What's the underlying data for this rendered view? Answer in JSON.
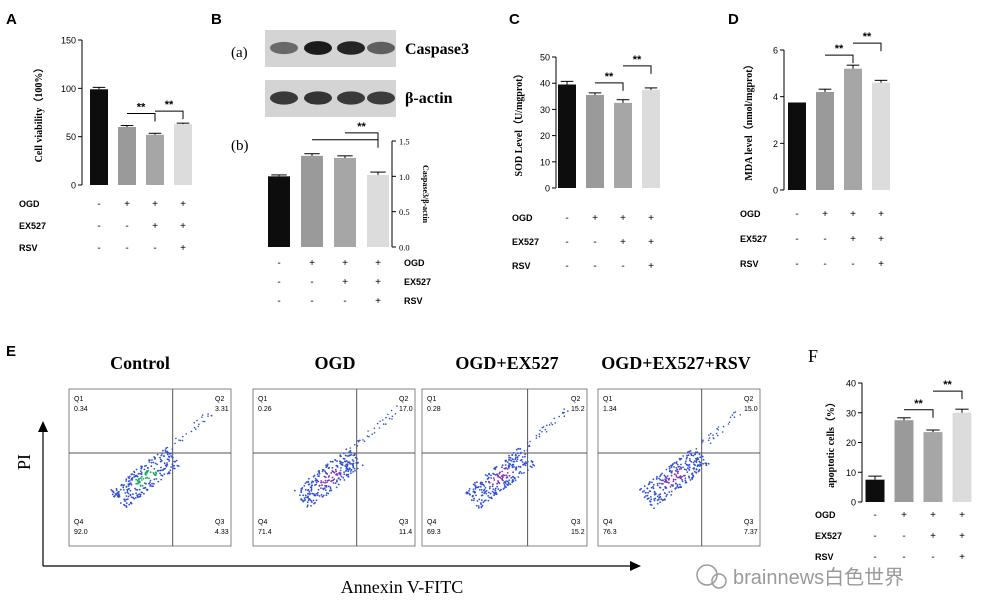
{
  "panel_letters": {
    "A": "A",
    "B": "B",
    "C": "C",
    "D": "D",
    "E": "E",
    "F": "F"
  },
  "groups": {
    "ogd": [
      "-",
      "+",
      "+",
      "+"
    ],
    "ex527": [
      "-",
      "-",
      "+",
      "+"
    ],
    "rsv": [
      "-",
      "-",
      "-",
      "+"
    ]
  },
  "row_labels": {
    "ogd": "OGD",
    "ex527": "EX527",
    "rsv": "RSV"
  },
  "sig_mark": "**",
  "bar_colors": [
    "#0d0d0d",
    "#9a9a9a",
    "#a6a6a6",
    "#dcdcdc"
  ],
  "blot": {
    "sub_a": "(a)",
    "sub_b": "(b)",
    "labels": [
      "Caspase3",
      "β-actin"
    ]
  },
  "flow": {
    "titles": [
      "Control",
      "OGD",
      "OGD+EX527",
      "OGD+EX527+RSV"
    ],
    "quadrants": [
      {
        "Q1": "0.34",
        "Q2": "3.31",
        "Q3": "4.33",
        "Q4": "92.0"
      },
      {
        "Q1": "0.26",
        "Q2": "17.0",
        "Q3": "11.4",
        "Q4": "71.4"
      },
      {
        "Q1": "0.28",
        "Q2": "15.2",
        "Q3": "15.2",
        "Q4": "69.3"
      },
      {
        "Q1": "1.34",
        "Q2": "15.0",
        "Q3": "7.37",
        "Q4": "76.3"
      }
    ],
    "q_names": [
      "Q1",
      "Q2",
      "Q3",
      "Q4"
    ],
    "y_axis_label": "PI",
    "x_axis_label": "Annexin V-FITC"
  },
  "watermark": "brainnews白色世界",
  "chart_data": [
    {
      "panel": "A",
      "type": "bar",
      "ylabel": "Cell viability（100%）",
      "ylim": [
        0,
        150
      ],
      "yticks": [
        "0",
        "50",
        "100",
        "150"
      ],
      "values": [
        99,
        60,
        52,
        63
      ],
      "errors": [
        2,
        1.5,
        1.5,
        1
      ],
      "sig": [
        [
          1,
          2,
          "**"
        ],
        [
          2,
          3,
          "**"
        ]
      ]
    },
    {
      "panel": "B(b)",
      "type": "bar",
      "ylabel": "Caspase3/β-actin",
      "ylim": [
        0,
        1.5
      ],
      "yticks": [
        "0.0",
        "0.5",
        "1.0",
        "1.5"
      ],
      "values": [
        1.0,
        1.29,
        1.26,
        1.02
      ],
      "errors": [
        0.02,
        0.03,
        0.03,
        0.04
      ],
      "sig": [
        [
          1,
          3,
          ""
        ],
        [
          2,
          3,
          "**"
        ]
      ]
    },
    {
      "panel": "C",
      "type": "bar",
      "ylabel": "SOD Level（U/mgprot）",
      "ylim": [
        0,
        50
      ],
      "yticks": [
        "0",
        "10",
        "20",
        "30",
        "40",
        "50"
      ],
      "values": [
        39.5,
        35.5,
        32.5,
        37.5
      ],
      "errors": [
        1.2,
        0.8,
        1.2,
        0.7
      ],
      "sig": [
        [
          1,
          2,
          "**"
        ],
        [
          2,
          3,
          "**"
        ]
      ]
    },
    {
      "panel": "D",
      "type": "bar",
      "ylabel": "MDA level（nmol/mgprot）",
      "ylim": [
        0,
        6
      ],
      "yticks": [
        "0",
        "2",
        "4",
        "6"
      ],
      "values": [
        3.75,
        4.2,
        5.2,
        4.6
      ],
      "errors": [
        0,
        0.12,
        0.15,
        0.1
      ],
      "sig": [
        [
          1,
          2,
          "**"
        ],
        [
          2,
          3,
          "**"
        ]
      ]
    },
    {
      "panel": "F",
      "type": "bar",
      "ylabel": "apoptotic cells（%）",
      "ylim": [
        0,
        40
      ],
      "yticks": [
        "0",
        "10",
        "20",
        "30",
        "40"
      ],
      "values": [
        7.5,
        27.5,
        23.5,
        30.0
      ],
      "errors": [
        1.2,
        0.8,
        0.7,
        1.2
      ],
      "sig": [
        [
          1,
          2,
          "**"
        ],
        [
          2,
          3,
          "**"
        ]
      ]
    }
  ]
}
